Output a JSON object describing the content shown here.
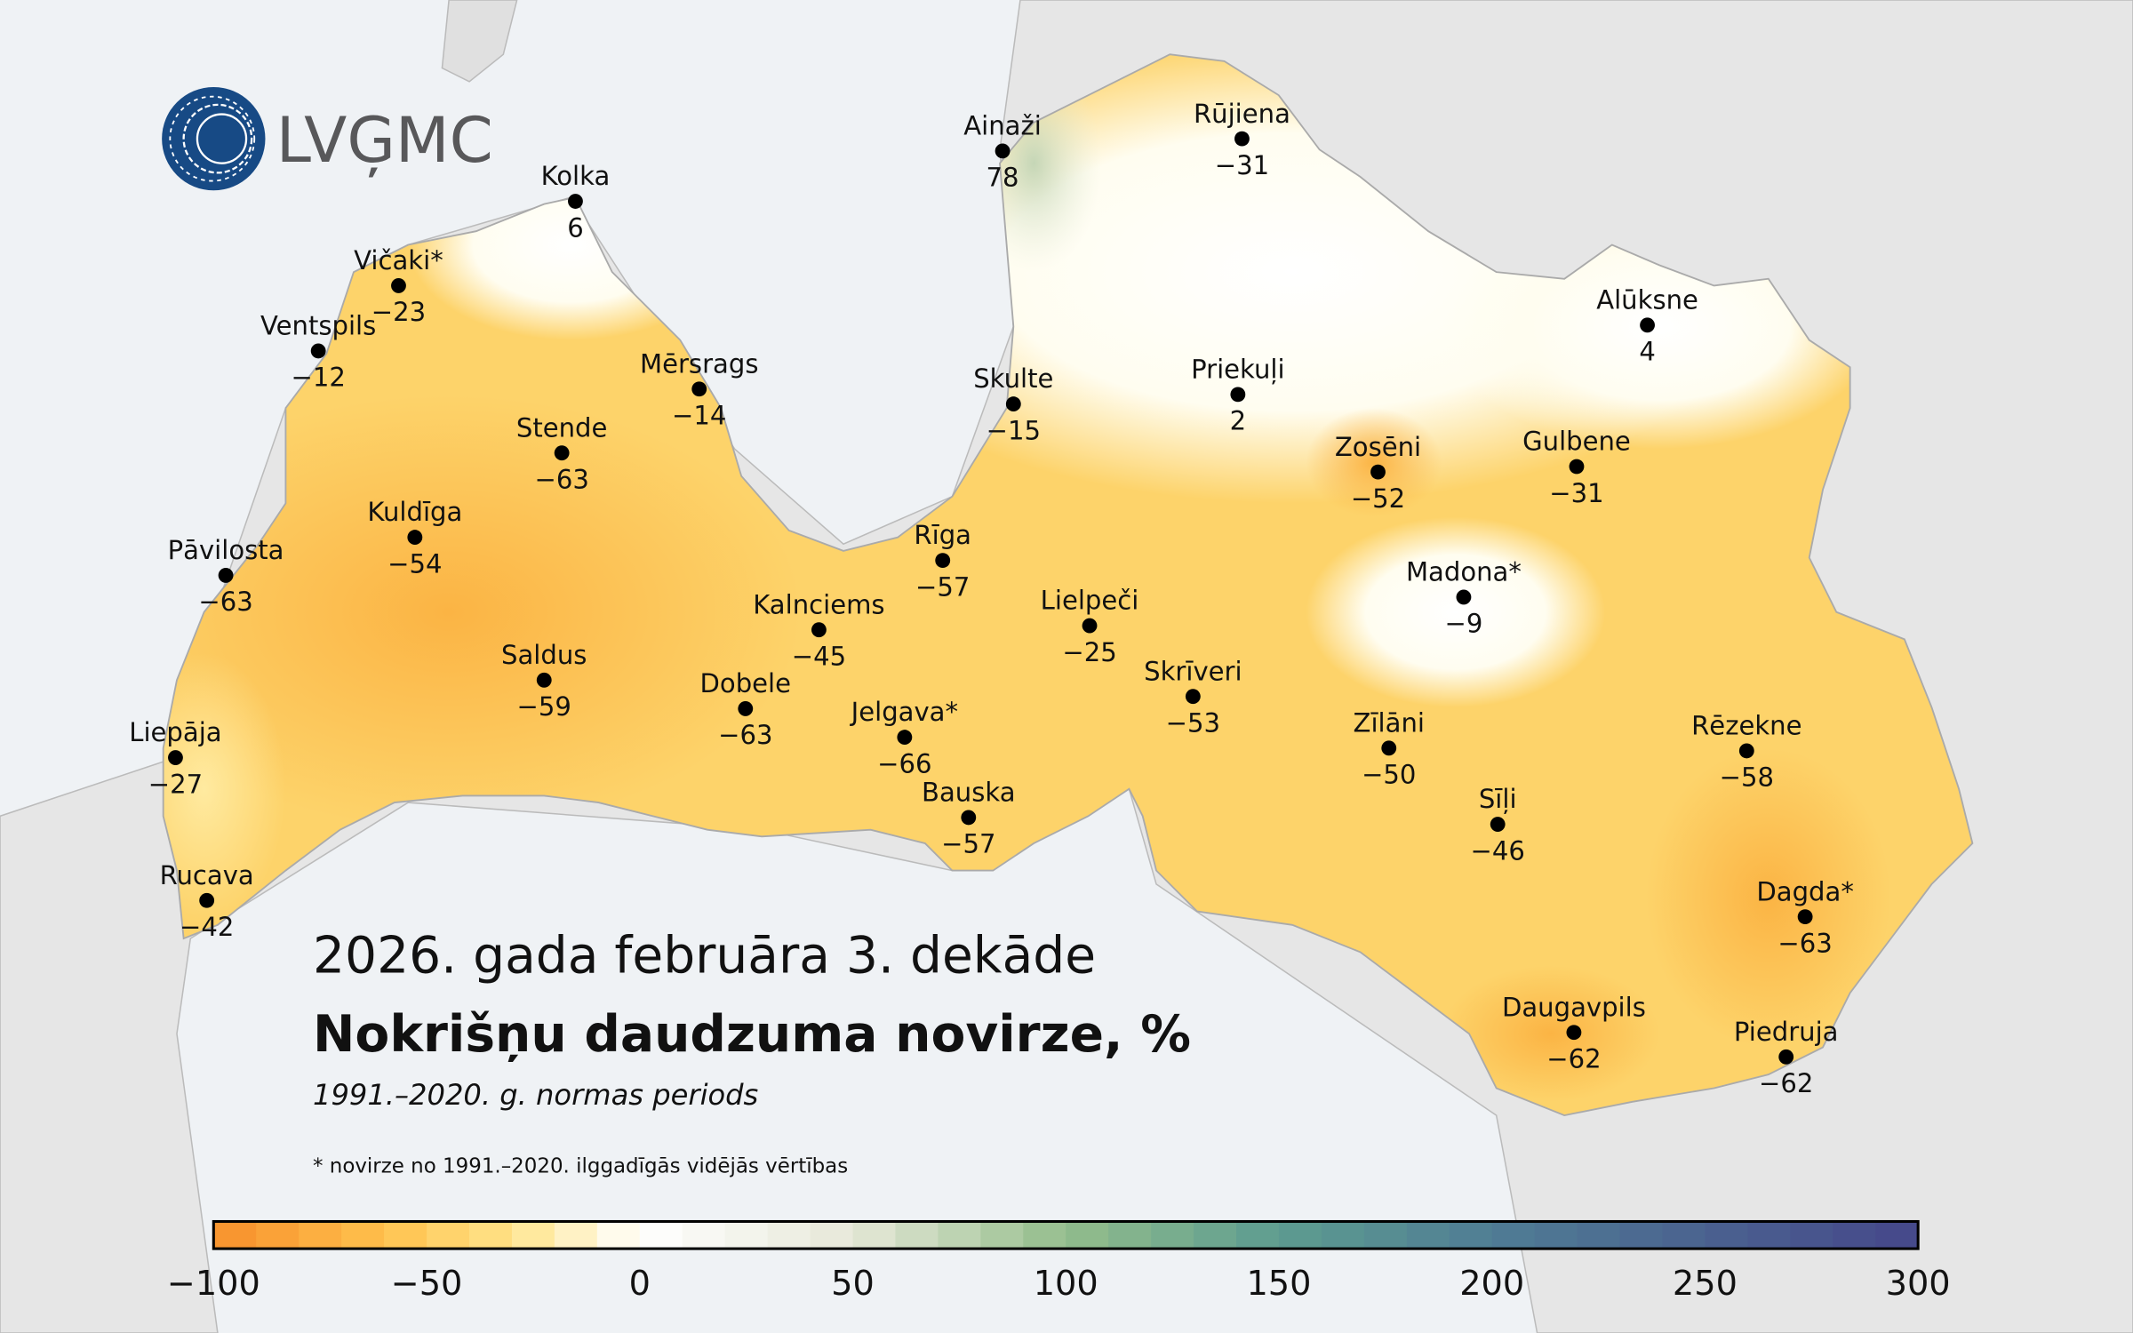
{
  "logo": {
    "text": "LVĢMC",
    "color": "#174a85"
  },
  "title": {
    "period": "2026. gada februāra 3. dekāde",
    "main": "Nokrišņu daudzuma novirze, %",
    "norm": "1991.–2020. g. normas periods",
    "footnote": "* novirze no 1991.–2020. ilggadīgās vidējās vērtības"
  },
  "stations": [
    {
      "name": "Ainaži",
      "value": "78"
    },
    {
      "name": "Rūjiena",
      "value": "−31"
    },
    {
      "name": "Kolka",
      "value": "6"
    },
    {
      "name": "Vičaki*",
      "value": "−23"
    },
    {
      "name": "Ventspils",
      "value": "−12"
    },
    {
      "name": "Mērsrags",
      "value": "−14"
    },
    {
      "name": "Skulte",
      "value": "−15"
    },
    {
      "name": "Priekuļi",
      "value": "2"
    },
    {
      "name": "Alūksne",
      "value": "4"
    },
    {
      "name": "Stende",
      "value": "−63"
    },
    {
      "name": "Zosēni",
      "value": "−52"
    },
    {
      "name": "Gulbene",
      "value": "−31"
    },
    {
      "name": "Kuldīga",
      "value": "−54"
    },
    {
      "name": "Pāvilosta",
      "value": "−63"
    },
    {
      "name": "Rīga",
      "value": "−57"
    },
    {
      "name": "Madona*",
      "value": "−9"
    },
    {
      "name": "Kalnciems",
      "value": "−45"
    },
    {
      "name": "Lielpeči",
      "value": "−25"
    },
    {
      "name": "Saldus",
      "value": "−59"
    },
    {
      "name": "Dobele",
      "value": "−63"
    },
    {
      "name": "Skrīveri",
      "value": "−53"
    },
    {
      "name": "Jelgava*",
      "value": "−66"
    },
    {
      "name": "Zīlāni",
      "value": "−50"
    },
    {
      "name": "Rēzekne",
      "value": "−58"
    },
    {
      "name": "Liepāja",
      "value": "−27"
    },
    {
      "name": "Bauska",
      "value": "−57"
    },
    {
      "name": "Sīļi",
      "value": "−46"
    },
    {
      "name": "Rucava",
      "value": "−42"
    },
    {
      "name": "Dagda*",
      "value": "−63"
    },
    {
      "name": "Daugavpils",
      "value": "−62"
    },
    {
      "name": "Piedruja",
      "value": "−62"
    }
  ],
  "colorbar": {
    "min": -100,
    "max": 300,
    "step": 10,
    "ticks": [
      "−100",
      "−50",
      "0",
      "50",
      "100",
      "150",
      "200",
      "250",
      "300"
    ],
    "stops": [
      {
        "v": -100,
        "c": "#f7902c"
      },
      {
        "v": -60,
        "c": "#ffc14d"
      },
      {
        "v": -30,
        "c": "#ffe48a"
      },
      {
        "v": 0,
        "c": "#ffffff"
      },
      {
        "v": 50,
        "c": "#e6e8d8"
      },
      {
        "v": 100,
        "c": "#93bd8b"
      },
      {
        "v": 150,
        "c": "#5d9c90"
      },
      {
        "v": 200,
        "c": "#507d94"
      },
      {
        "v": 300,
        "c": "#45478a"
      }
    ]
  },
  "colors": {
    "sea": "#eff2f5",
    "land": "#e6e6e6",
    "base": "#fdd36a"
  }
}
